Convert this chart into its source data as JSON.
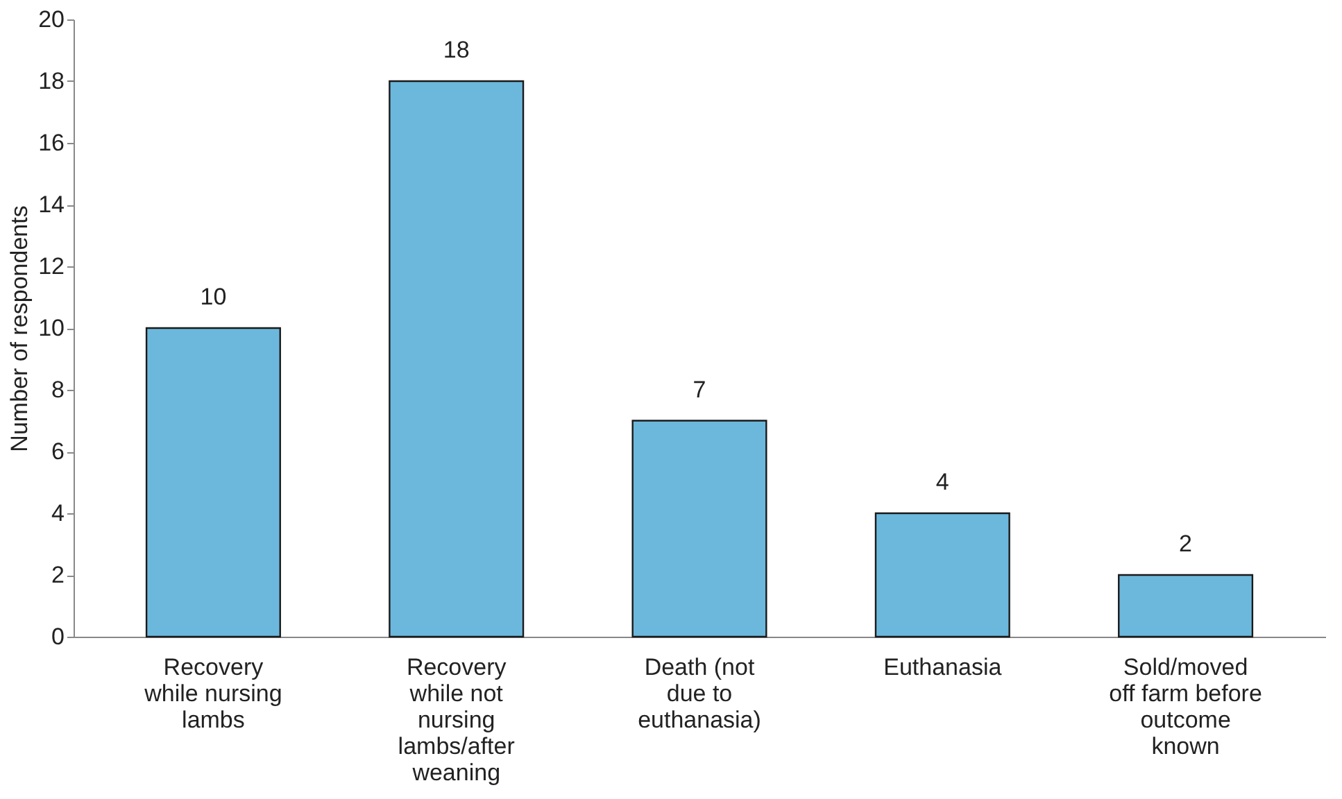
{
  "chart_data": {
    "type": "bar",
    "ylabel": "Number of respondents",
    "categories": [
      "Recovery\nwhile nursing\nlambs",
      "Recovery\nwhile not\nnursing\nlambs/after\nweaning",
      "Death (not\ndue to\neuthanasia)",
      "Euthanasia",
      "Sold/moved\noff farm before\noutcome\nknown"
    ],
    "values": [
      10,
      18,
      7,
      4,
      2
    ],
    "color": "#6cb8dc",
    "ylim": [
      0,
      20
    ],
    "yticks": [
      0,
      2,
      4,
      6,
      8,
      10,
      12,
      14,
      16,
      18,
      20
    ],
    "grid": false,
    "data_labels": true
  }
}
